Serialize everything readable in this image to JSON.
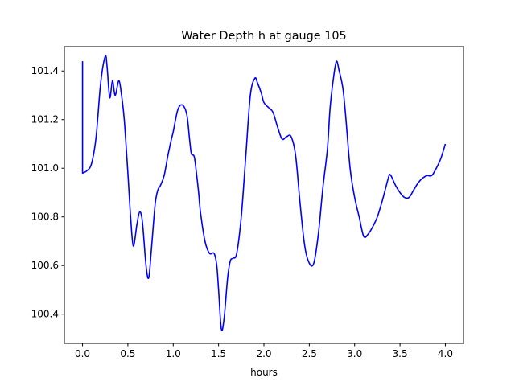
{
  "chart_data": {
    "type": "line",
    "title": "Water Depth h at gauge 105",
    "xlabel": "hours",
    "ylabel": "",
    "xlim": [
      -0.2,
      4.2
    ],
    "ylim": [
      100.28,
      101.5
    ],
    "xticks": [
      0.0,
      0.5,
      1.0,
      1.5,
      2.0,
      2.5,
      3.0,
      3.5,
      4.0
    ],
    "xtick_labels": [
      "0.0",
      "0.5",
      "1.0",
      "1.5",
      "2.0",
      "2.5",
      "3.0",
      "3.5",
      "4.0"
    ],
    "yticks": [
      100.4,
      100.6,
      100.8,
      101.0,
      101.2,
      101.4
    ],
    "ytick_labels": [
      "100.4",
      "100.6",
      "100.8",
      "101.0",
      "101.2",
      "101.4"
    ],
    "grid": false,
    "legend": "none",
    "series": [
      {
        "color": "#0000ff",
        "x": [
          0.0,
          0.0,
          0.05,
          0.1,
          0.15,
          0.2,
          0.25,
          0.27,
          0.3,
          0.33,
          0.36,
          0.4,
          0.43,
          0.46,
          0.5,
          0.53,
          0.56,
          0.6,
          0.63,
          0.66,
          0.7,
          0.73,
          0.76,
          0.8,
          0.83,
          0.86,
          0.9,
          0.94,
          0.98,
          1.0,
          1.05,
          1.1,
          1.15,
          1.18,
          1.2,
          1.23,
          1.25,
          1.28,
          1.3,
          1.35,
          1.4,
          1.45,
          1.48,
          1.5,
          1.53,
          1.56,
          1.6,
          1.63,
          1.66,
          1.7,
          1.75,
          1.8,
          1.85,
          1.9,
          1.93,
          1.97,
          2.0,
          2.05,
          2.1,
          2.15,
          2.2,
          2.25,
          2.3,
          2.35,
          2.4,
          2.45,
          2.5,
          2.55,
          2.6,
          2.65,
          2.7,
          2.73,
          2.77,
          2.8,
          2.83,
          2.87,
          2.9,
          2.95,
          3.0,
          3.05,
          3.1,
          3.15,
          3.2,
          3.25,
          3.3,
          3.35,
          3.38,
          3.4,
          3.45,
          3.5,
          3.55,
          3.6,
          3.65,
          3.7,
          3.75,
          3.8,
          3.85,
          3.9,
          3.95,
          4.0
        ],
        "y": [
          101.44,
          100.98,
          100.99,
          101.02,
          101.13,
          101.35,
          101.46,
          101.42,
          101.29,
          101.36,
          101.3,
          101.36,
          101.3,
          101.2,
          100.98,
          100.8,
          100.68,
          100.77,
          100.82,
          100.78,
          100.6,
          100.55,
          100.67,
          100.85,
          100.91,
          100.93,
          100.97,
          101.05,
          101.12,
          101.15,
          101.24,
          101.26,
          101.22,
          101.12,
          101.06,
          101.05,
          101.0,
          100.9,
          100.82,
          100.7,
          100.65,
          100.65,
          100.6,
          100.5,
          100.34,
          100.38,
          100.55,
          100.62,
          100.63,
          100.65,
          100.8,
          101.05,
          101.3,
          101.37,
          101.35,
          101.31,
          101.27,
          101.25,
          101.23,
          101.17,
          101.12,
          101.13,
          101.13,
          101.05,
          100.85,
          100.68,
          100.61,
          100.61,
          100.73,
          100.92,
          101.08,
          101.25,
          101.38,
          101.44,
          101.4,
          101.33,
          101.22,
          101.0,
          100.88,
          100.8,
          100.72,
          100.73,
          100.76,
          100.8,
          100.86,
          100.93,
          100.97,
          100.97,
          100.93,
          100.9,
          100.88,
          100.88,
          100.91,
          100.94,
          100.96,
          100.97,
          100.97,
          101.0,
          101.04,
          101.1
        ]
      }
    ]
  }
}
